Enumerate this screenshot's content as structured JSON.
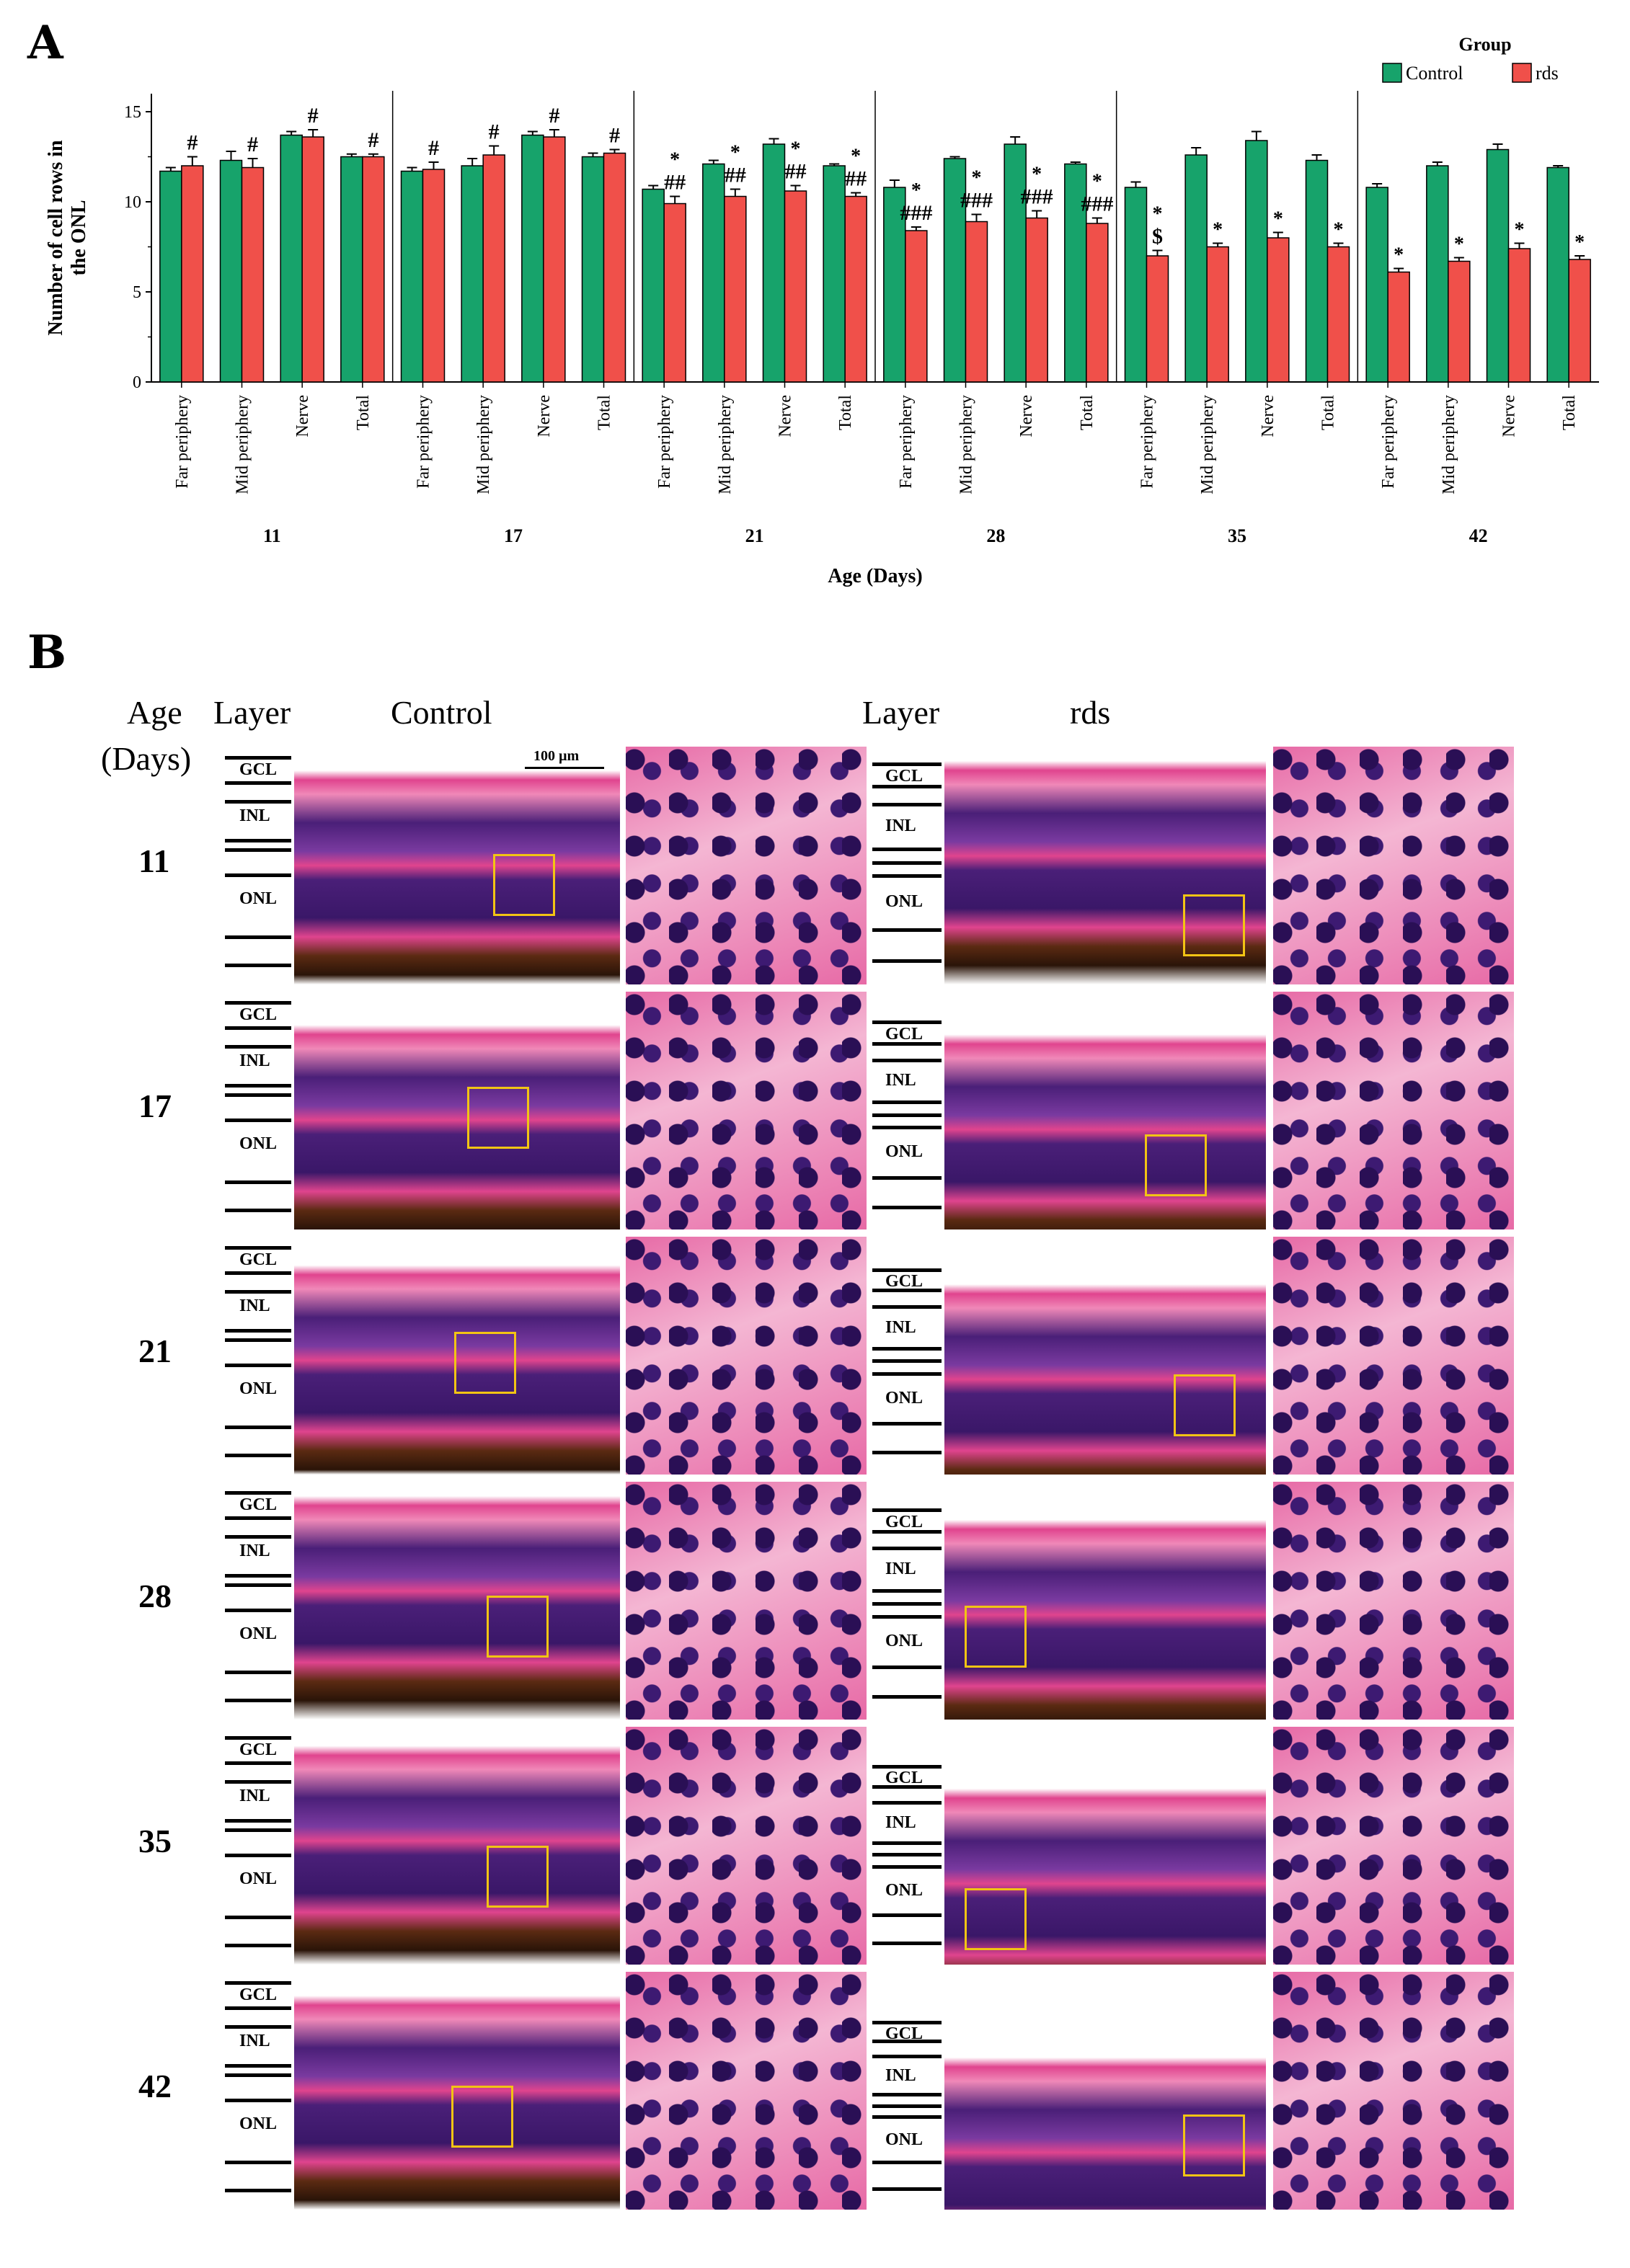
{
  "panel_a": {
    "letter": "A"
  },
  "panel_b": {
    "letter": "B",
    "header_age": "Age",
    "header_days": "(Days)",
    "header_layer_left": "Layer",
    "header_control": "Control",
    "header_layer_right": "Layer",
    "header_rds": "rds",
    "scale_label": "100 µm",
    "layer_names": {
      "gcl": "GCL",
      "inl": "INL",
      "onl": "ONL"
    },
    "ages": [
      "11",
      "17",
      "21",
      "28",
      "35",
      "42"
    ],
    "colors": {
      "highlight_box": "#f2c414",
      "stain_pink": "#e0448e",
      "stain_purple": "#4a1f78"
    }
  },
  "chart_data": {
    "type": "bar",
    "ylabel_line1": "Number of cell rows in",
    "ylabel_line2": "the ONL",
    "xlabel": "Age (Days)",
    "ylim": [
      0,
      16
    ],
    "yticks": [
      0,
      5,
      10,
      15
    ],
    "legend": {
      "title": "Group",
      "position": "top-right",
      "entries": [
        "Control",
        "rds"
      ]
    },
    "colors": {
      "Control": "#17a36b",
      "rds": "#f0504a"
    },
    "categories": [
      "Far periphery",
      "Mid periphery",
      "Nerve",
      "Total"
    ],
    "groups": [
      {
        "age": "11",
        "control": [
          11.7,
          12.3,
          13.7,
          12.5
        ],
        "rds": [
          12.0,
          11.9,
          13.6,
          12.5
        ],
        "control_err": [
          0.2,
          0.5,
          0.2,
          0.15
        ],
        "rds_err": [
          0.5,
          0.5,
          0.4,
          0.15
        ],
        "rds_marks": [
          "#",
          "#",
          "#",
          "#"
        ]
      },
      {
        "age": "17",
        "control": [
          11.7,
          12.0,
          13.7,
          12.5
        ],
        "rds": [
          11.8,
          12.6,
          13.6,
          12.7
        ],
        "control_err": [
          0.2,
          0.4,
          0.2,
          0.2
        ],
        "rds_err": [
          0.4,
          0.5,
          0.4,
          0.2
        ],
        "rds_marks": [
          "#",
          "#",
          "#",
          "#"
        ]
      },
      {
        "age": "21",
        "control": [
          10.7,
          12.1,
          13.2,
          12.0
        ],
        "rds": [
          9.9,
          10.3,
          10.6,
          10.3
        ],
        "control_err": [
          0.2,
          0.2,
          0.3,
          0.1
        ],
        "rds_err": [
          0.4,
          0.4,
          0.3,
          0.2
        ],
        "rds_marks": [
          "*\n##",
          "*\n##",
          "*\n##",
          "*\n##"
        ]
      },
      {
        "age": "28",
        "control": [
          10.8,
          12.4,
          13.2,
          12.1
        ],
        "rds": [
          8.4,
          8.9,
          9.1,
          8.8
        ],
        "control_err": [
          0.4,
          0.1,
          0.4,
          0.1
        ],
        "rds_err": [
          0.2,
          0.4,
          0.4,
          0.3
        ],
        "rds_marks": [
          "*\n###",
          "*\n###",
          "*\n###",
          "*\n###"
        ]
      },
      {
        "age": "35",
        "control": [
          10.8,
          12.6,
          13.4,
          12.3
        ],
        "rds": [
          7.0,
          7.5,
          8.0,
          7.5
        ],
        "control_err": [
          0.3,
          0.4,
          0.5,
          0.3
        ],
        "rds_err": [
          0.3,
          0.2,
          0.3,
          0.2
        ],
        "rds_marks": [
          "*\n$",
          "*",
          "*",
          "*"
        ]
      },
      {
        "age": "42",
        "control": [
          10.8,
          12.0,
          12.9,
          11.9
        ],
        "rds": [
          6.1,
          6.7,
          7.4,
          6.8
        ],
        "control_err": [
          0.2,
          0.2,
          0.3,
          0.1
        ],
        "rds_err": [
          0.2,
          0.2,
          0.3,
          0.2
        ],
        "rds_marks": [
          "*",
          "*",
          "*",
          "*"
        ]
      }
    ]
  }
}
